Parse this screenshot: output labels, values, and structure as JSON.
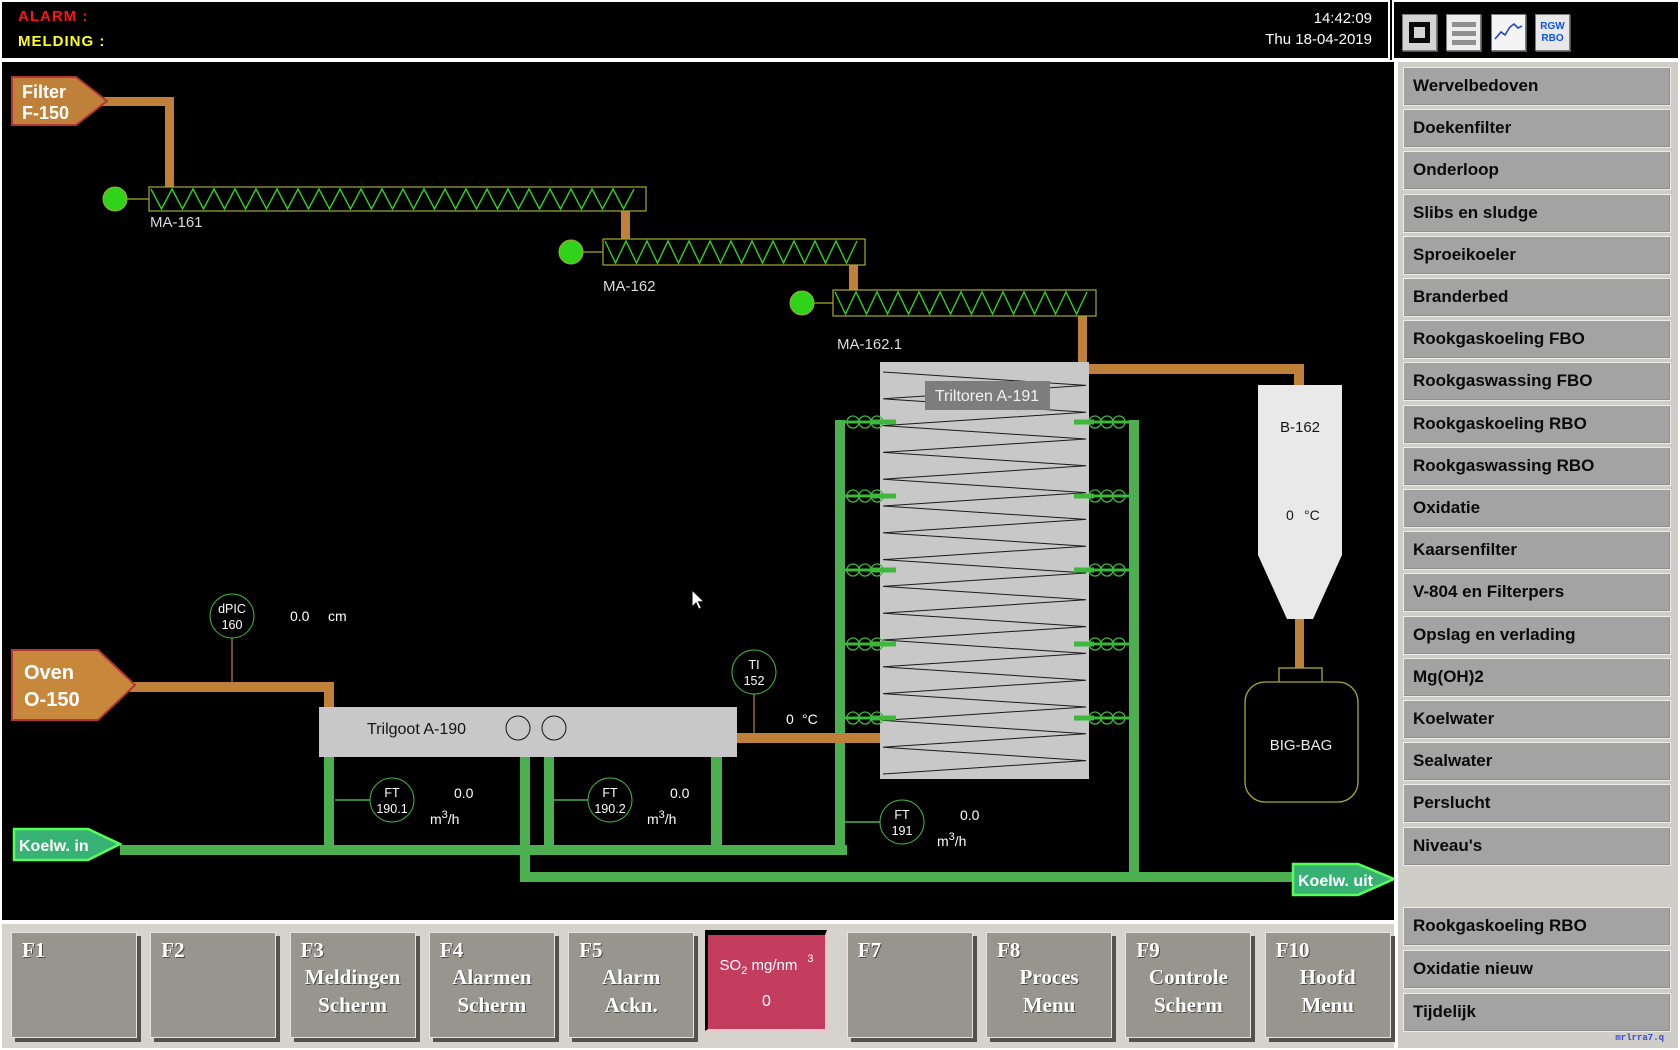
{
  "header": {
    "alarm_label": "ALARM :",
    "melding_label": "MELDING :",
    "clock_time": "14:42:09",
    "clock_date": "Thu 18-04-2019",
    "rgw_icon_line1": "RGW",
    "rgw_icon_line2": "RBO"
  },
  "sidebar": {
    "items": [
      "Wervelbedoven",
      "Doekenfilter",
      "Onderloop",
      "Slibs en sludge",
      "Sproeikoeler",
      "Branderbed",
      "Rookgaskoeling FBO",
      "Rookgaswassing FBO",
      "Rookgaskoeling RBO",
      "Rookgaswassing RBO",
      "Oxidatie",
      "Kaarsenfilter",
      "V-804 en Filterpers",
      "Opslag en verlading",
      "Mg(OH)2",
      "Koelwater",
      "Sealwater",
      "Perslucht",
      "Niveau's"
    ],
    "items_extra": [
      "Rookgaskoeling RBO",
      "Oxidatie nieuw",
      "Tijdelijk"
    ],
    "footer_text": "mrlrra7.q"
  },
  "fkeys": [
    {
      "key": "F1",
      "lines": []
    },
    {
      "key": "F2",
      "lines": []
    },
    {
      "key": "F3",
      "lines": [
        "Meldingen",
        "Scherm"
      ]
    },
    {
      "key": "F4",
      "lines": [
        "Alarmen",
        "Scherm"
      ]
    },
    {
      "key": "F5",
      "lines": [
        "Alarm",
        "Ackn."
      ]
    },
    {
      "key": "F7",
      "lines": []
    },
    {
      "key": "F8",
      "lines": [
        "Proces",
        "Menu"
      ]
    },
    {
      "key": "F9",
      "lines": [
        "Controle",
        "Scherm"
      ]
    },
    {
      "key": "F10",
      "lines": [
        "Hoofd",
        "Menu"
      ]
    }
  ],
  "so2": {
    "prefix": "SO",
    "sub": "2",
    "mid": " mg/nm",
    "sup": "3",
    "value": "0"
  },
  "diagram": {
    "filter_tag": {
      "line1": "Filter",
      "line2": "F-150"
    },
    "oven_tag": {
      "line1": "Oven",
      "line2": "O-150"
    },
    "conveyor1_label": "MA-161",
    "conveyor2_label": "MA-162",
    "conveyor3_label": "MA-162.1",
    "triltoren_label": "Triltoren A-191",
    "trilgoot_label": "Trilgoot A-190",
    "b162_label": "B-162",
    "b162_temp": {
      "value": "0",
      "unit": "°C"
    },
    "bigbag_label": "BIG-BAG",
    "dpic160": {
      "line1": "dPIC",
      "line2": "160",
      "value": "0.0",
      "unit": "cm"
    },
    "ti152": {
      "line1": "TI",
      "line2": "152",
      "value": "0",
      "unit": "°C"
    },
    "ft1901": {
      "line1": "FT",
      "line2": "190.1",
      "value": "0.0"
    },
    "ft1902": {
      "line1": "FT",
      "line2": "190.2",
      "value": "0.0"
    },
    "ft191": {
      "line1": "FT",
      "line2": "191",
      "value": "0.0"
    },
    "flow_unit": {
      "base": "m",
      "exp": "3",
      "per": "/h"
    },
    "koelw_in_label": "Koelw. in",
    "koelw_uit_label": "Koelw. uit",
    "colors": {
      "pipe_orange": "#bf8139",
      "pipe_green": "#4CAF50",
      "bright_green": "#2fd41a",
      "alarm_red": "#ff1414",
      "melding_yellow": "#ffff22",
      "so2_tile": "#c43c5e"
    }
  }
}
